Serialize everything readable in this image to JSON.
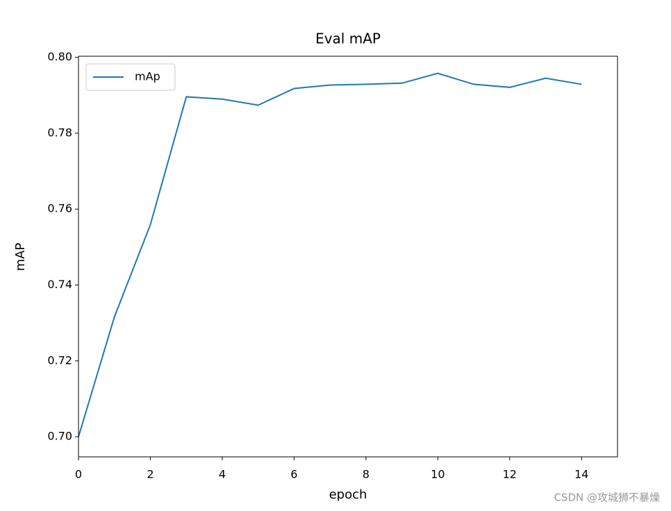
{
  "chart_data": {
    "type": "line",
    "title": "Eval mAP",
    "x_label": "epoch",
    "y_label": "mAP",
    "x": [
      0,
      1,
      2,
      3,
      4,
      5,
      6,
      7,
      8,
      9,
      10,
      11,
      12,
      13,
      14
    ],
    "series": [
      {
        "name": "mAp",
        "color": "#1f77b4",
        "values": [
          0.7,
          0.7316,
          0.7559,
          0.7896,
          0.789,
          0.7874,
          0.7918,
          0.7927,
          0.7929,
          0.7932,
          0.7958,
          0.7929,
          0.7921,
          0.7945,
          0.7929
        ]
      }
    ],
    "xlim": [
      0,
      15
    ],
    "xticks": [
      0,
      2,
      4,
      6,
      8,
      10,
      12,
      14
    ],
    "ylim": [
      0.6947,
      0.8003
    ],
    "yticks": [
      {
        "value": 0.7,
        "label": "0.70"
      },
      {
        "value": 0.72,
        "label": "0.72"
      },
      {
        "value": 0.74,
        "label": "0.74"
      },
      {
        "value": 0.76,
        "label": "0.76"
      },
      {
        "value": 0.78,
        "label": "0.78"
      },
      {
        "value": 0.8,
        "label": "0.80"
      }
    ],
    "legend": "upper left",
    "grid": false
  },
  "watermark": "CSDN @攻城狮不暴燥"
}
